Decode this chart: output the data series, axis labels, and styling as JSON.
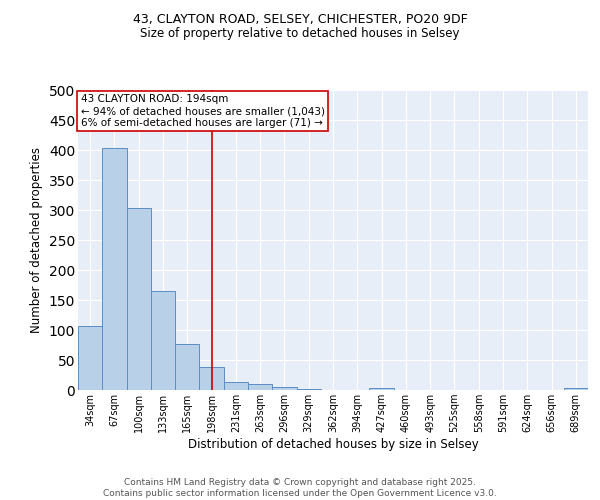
{
  "title_line1": "43, CLAYTON ROAD, SELSEY, CHICHESTER, PO20 9DF",
  "title_line2": "Size of property relative to detached houses in Selsey",
  "xlabel": "Distribution of detached houses by size in Selsey",
  "ylabel": "Number of detached properties",
  "categories": [
    "34sqm",
    "67sqm",
    "100sqm",
    "133sqm",
    "165sqm",
    "198sqm",
    "231sqm",
    "263sqm",
    "296sqm",
    "329sqm",
    "362sqm",
    "394sqm",
    "427sqm",
    "460sqm",
    "493sqm",
    "525sqm",
    "558sqm",
    "591sqm",
    "624sqm",
    "656sqm",
    "689sqm"
  ],
  "values": [
    107,
    403,
    303,
    165,
    76,
    38,
    13,
    10,
    5,
    2,
    0,
    0,
    3,
    0,
    0,
    0,
    0,
    0,
    0,
    0,
    3
  ],
  "bar_color": "#b8d0e8",
  "bar_edge_color": "#5b8ec4",
  "background_color": "#e8eef8",
  "red_line_index": 5,
  "annotation_text_line1": "43 CLAYTON ROAD: 194sqm",
  "annotation_text_line2": "← 94% of detached houses are smaller (1,043)",
  "annotation_text_line3": "6% of semi-detached houses are larger (71) →",
  "annotation_color": "#cc0000",
  "footer_line1": "Contains HM Land Registry data © Crown copyright and database right 2025.",
  "footer_line2": "Contains public sector information licensed under the Open Government Licence v3.0.",
  "ylim": [
    0,
    500
  ],
  "yticks": [
    0,
    50,
    100,
    150,
    200,
    250,
    300,
    350,
    400,
    450,
    500
  ],
  "title_fontsize": 9,
  "subtitle_fontsize": 8.5,
  "xlabel_fontsize": 8.5,
  "ylabel_fontsize": 8.5,
  "tick_fontsize": 7,
  "annot_fontsize": 7.5,
  "footer_fontsize": 6.5
}
